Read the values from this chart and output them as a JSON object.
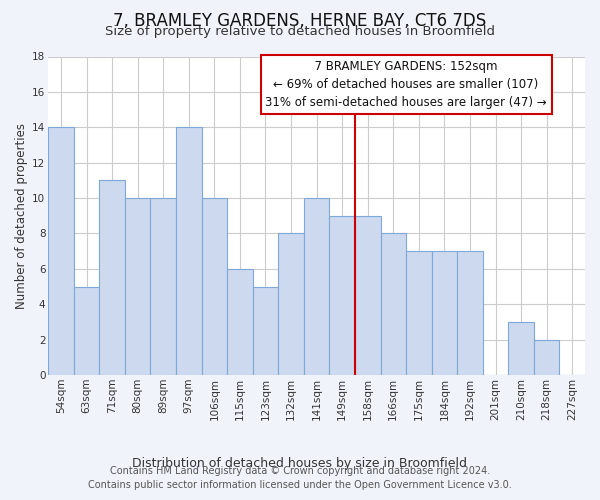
{
  "title": "7, BRAMLEY GARDENS, HERNE BAY, CT6 7DS",
  "subtitle": "Size of property relative to detached houses in Broomfield",
  "xlabel": "Distribution of detached houses by size in Broomfield",
  "ylabel": "Number of detached properties",
  "categories": [
    "54sqm",
    "63sqm",
    "71sqm",
    "80sqm",
    "89sqm",
    "97sqm",
    "106sqm",
    "115sqm",
    "123sqm",
    "132sqm",
    "141sqm",
    "149sqm",
    "158sqm",
    "166sqm",
    "175sqm",
    "184sqm",
    "192sqm",
    "201sqm",
    "210sqm",
    "218sqm",
    "227sqm"
  ],
  "values": [
    14,
    5,
    11,
    10,
    10,
    14,
    10,
    6,
    5,
    8,
    10,
    9,
    9,
    8,
    7,
    7,
    7,
    0,
    3,
    2,
    0
  ],
  "bar_color": "#ccd9ee",
  "bar_edge_color": "#7da8d8",
  "background_color": "#ffffff",
  "fig_background_color": "#f0f4fa",
  "grid_color": "#cccccc",
  "property_line_color": "#cc0000",
  "property_line_index": 11.5,
  "annotation_title": "7 BRAMLEY GARDENS: 152sqm",
  "annotation_line1": "← 69% of detached houses are smaller (107)",
  "annotation_line2": "31% of semi-detached houses are larger (47) →",
  "annotation_box_color": "#ffffff",
  "annotation_box_edge_color": "#cc0000",
  "footer_line1": "Contains HM Land Registry data © Crown copyright and database right 2024.",
  "footer_line2": "Contains public sector information licensed under the Open Government Licence v3.0.",
  "ylim": [
    0,
    18
  ],
  "yticks": [
    0,
    2,
    4,
    6,
    8,
    10,
    12,
    14,
    16,
    18
  ],
  "title_fontsize": 12,
  "subtitle_fontsize": 9.5,
  "xlabel_fontsize": 9,
  "ylabel_fontsize": 8.5,
  "tick_fontsize": 7.5,
  "footer_fontsize": 7,
  "annotation_fontsize": 8.5
}
